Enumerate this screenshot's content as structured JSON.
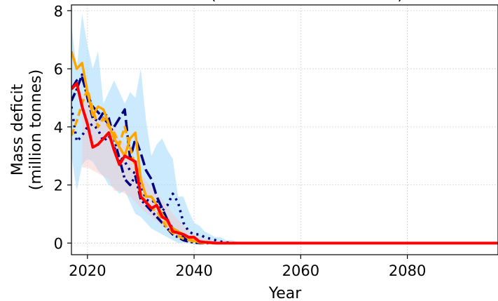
{
  "chart_data": {
    "type": "line",
    "title_fragment": "(                                     )",
    "xlabel": "Year",
    "ylabel": [
      "Mass deficit",
      "(million tonnes)"
    ],
    "xlim": [
      2017,
      2097
    ],
    "ylim": [
      -0.4,
      8.2
    ],
    "x_ticks": [
      2020,
      2040,
      2060,
      2080
    ],
    "y_ticks": [
      0,
      2,
      4,
      6,
      8
    ],
    "grid": true,
    "legend": "none",
    "bands": [
      {
        "color": "#a9dcfb",
        "opacity": 0.6,
        "x": [
          2017,
          2018,
          2019,
          2020,
          2021,
          2022,
          2023,
          2024,
          2025,
          2026,
          2027,
          2028,
          2029,
          2030,
          2031,
          2032,
          2033,
          2034,
          2035,
          2036,
          2037,
          2038,
          2039,
          2040,
          2041,
          2042,
          2043,
          2044,
          2045,
          2046,
          2047,
          2048,
          2050,
          2060,
          2097
        ],
        "upper": [
          7.5,
          6.0,
          7.9,
          6.8,
          6.0,
          6.6,
          4.8,
          5.2,
          5.6,
          5.2,
          4.8,
          5.2,
          5.0,
          6.0,
          4.2,
          3.0,
          3.4,
          3.6,
          3.2,
          2.9,
          1.6,
          1.6,
          1.1,
          0.7,
          0.6,
          0.4,
          0.3,
          0.2,
          0.2,
          0.1,
          0.1,
          0.05,
          0.02,
          0.02,
          0.02
        ],
        "lower": [
          3.0,
          1.8,
          2.7,
          2.9,
          2.8,
          2.5,
          2.3,
          2.0,
          1.9,
          1.7,
          1.8,
          1.4,
          1.0,
          0.9,
          0.7,
          0.5,
          0.4,
          0.3,
          0.2,
          0.1,
          0.0,
          0.0,
          0.0,
          -0.05,
          -0.05,
          -0.05,
          -0.05,
          -0.05,
          -0.05,
          -0.05,
          -0.05,
          -0.05,
          -0.05,
          -0.05,
          -0.05
        ]
      },
      {
        "color": "#f6c8c8",
        "opacity": 0.45,
        "x": [
          2019,
          2020,
          2022,
          2024,
          2025,
          2026,
          2028,
          2030,
          2032,
          2034,
          2036,
          2038,
          2040,
          2042,
          2044
        ],
        "upper": [
          5.2,
          4.8,
          4.4,
          4.2,
          4.0,
          3.6,
          3.2,
          2.4,
          1.9,
          1.5,
          1.0,
          0.6,
          0.3,
          0.15,
          0.05
        ],
        "lower": [
          2.6,
          2.6,
          2.4,
          2.2,
          1.8,
          1.8,
          1.6,
          1.2,
          0.9,
          0.6,
          0.4,
          0.2,
          0.05,
          0.0,
          0.0
        ]
      }
    ],
    "series": [
      {
        "color": "#000080",
        "dash": "3,6",
        "width": 3.5,
        "x": [
          2017,
          2018,
          2019,
          2020,
          2021,
          2022,
          2023,
          2024,
          2025,
          2026,
          2027,
          2028,
          2029,
          2030,
          2031,
          2032,
          2033,
          2034,
          2035,
          2036,
          2037,
          2038,
          2039,
          2040,
          2041,
          2042,
          2043,
          2044,
          2045,
          2046,
          2047,
          2048,
          2050,
          2060,
          2097
        ],
        "y": [
          4.7,
          3.5,
          3.7,
          4.0,
          4.1,
          3.9,
          3.5,
          3.7,
          3.3,
          3.0,
          2.8,
          2.5,
          2.4,
          2.0,
          1.5,
          1.4,
          1.5,
          1.1,
          1.3,
          1.7,
          1.4,
          0.7,
          0.4,
          0.3,
          0.3,
          0.2,
          0.15,
          0.1,
          0.05,
          0.02,
          0.01,
          0.0,
          0.0,
          0.0,
          0.0
        ]
      },
      {
        "color": "#000080",
        "dash": "16,6",
        "width": 3.5,
        "x": [
          2017,
          2018,
          2019,
          2020,
          2021,
          2022,
          2023,
          2024,
          2025,
          2026,
          2027,
          2028,
          2029,
          2030,
          2031,
          2032,
          2033,
          2034,
          2035,
          2036,
          2037,
          2038,
          2039,
          2040,
          2041,
          2042,
          2043,
          2044,
          2045,
          2046,
          2047,
          2048,
          2050,
          2060,
          2097
        ],
        "y": [
          5.3,
          5.6,
          5.7,
          5.1,
          4.7,
          4.5,
          4.3,
          4.1,
          4.0,
          4.3,
          4.6,
          2.9,
          3.6,
          3.1,
          2.5,
          2.2,
          1.6,
          1.2,
          0.8,
          0.5,
          0.4,
          0.2,
          0.1,
          0.1,
          0.06,
          0.03,
          0.01,
          0.0,
          0.0,
          0.0,
          0.0,
          0.0,
          0.0,
          0.0,
          0.0
        ]
      },
      {
        "color": "#000080",
        "dash": "12,4,3,4",
        "width": 3.5,
        "x": [
          2017,
          2018,
          2019,
          2020,
          2021,
          2022,
          2023,
          2024,
          2025,
          2026,
          2027,
          2028,
          2029,
          2030,
          2031,
          2032,
          2033,
          2034,
          2035,
          2036,
          2037,
          2038,
          2039,
          2040,
          2041,
          2042,
          2043,
          2044,
          2045,
          2046,
          2047,
          2048,
          2050,
          2060,
          2097
        ],
        "y": [
          4.9,
          5.3,
          5.8,
          5.0,
          4.3,
          4.2,
          4.5,
          4.3,
          3.6,
          2.9,
          2.2,
          2.0,
          2.3,
          1.5,
          1.3,
          1.1,
          0.9,
          0.7,
          0.5,
          0.3,
          0.2,
          0.1,
          0.05,
          0.02,
          0.0,
          0.0,
          0.0,
          0.0,
          0.0,
          0.0,
          0.0,
          0.0,
          0.0,
          0.0,
          0.0
        ]
      },
      {
        "color": "#ffa500",
        "dash": "",
        "width": 3.5,
        "x": [
          2017,
          2018,
          2019,
          2020,
          2021,
          2022,
          2023,
          2024,
          2025,
          2026,
          2027,
          2028,
          2029,
          2030,
          2031,
          2032,
          2033,
          2034,
          2035,
          2036,
          2037,
          2038,
          2039,
          2040,
          2041,
          2042,
          2043,
          2044,
          2045,
          2046,
          2047,
          2048,
          2050,
          2060,
          2097
        ],
        "y": [
          6.6,
          6.0,
          6.2,
          5.2,
          4.4,
          4.7,
          4.6,
          4.1,
          3.6,
          3.3,
          3.0,
          3.6,
          3.8,
          2.2,
          1.6,
          1.6,
          1.3,
          1.0,
          0.7,
          0.5,
          0.4,
          0.3,
          0.15,
          0.08,
          0.04,
          0.02,
          0.01,
          0.0,
          0.0,
          0.0,
          0.0,
          0.0,
          0.0,
          0.0,
          0.0
        ]
      },
      {
        "color": "#ffa500",
        "dash": "10,5",
        "width": 3.5,
        "x": [
          2017,
          2018,
          2019,
          2020,
          2021,
          2022,
          2023,
          2024,
          2025,
          2026,
          2027,
          2028,
          2029,
          2030,
          2031,
          2032,
          2033,
          2034,
          2035,
          2036,
          2037,
          2038,
          2039,
          2040,
          2041,
          2042,
          2043,
          2044,
          2045,
          2046,
          2047,
          2048,
          2050,
          2060,
          2097
        ],
        "y": [
          3.7,
          4.2,
          4.8,
          5.3,
          4.6,
          4.0,
          4.3,
          4.0,
          3.8,
          3.4,
          4.0,
          3.3,
          2.6,
          1.7,
          1.4,
          1.2,
          1.1,
          0.8,
          0.5,
          0.35,
          0.25,
          0.15,
          0.1,
          0.05,
          0.02,
          0.0,
          0.0,
          0.0,
          0.0,
          0.0,
          0.0,
          0.0,
          0.0,
          0.0,
          0.0
        ]
      },
      {
        "color": "#ff0000",
        "dash": "",
        "width": 4,
        "x": [
          2017,
          2018,
          2019,
          2020,
          2021,
          2022,
          2023,
          2024,
          2025,
          2026,
          2027,
          2028,
          2029,
          2030,
          2031,
          2032,
          2033,
          2034,
          2035,
          2036,
          2037,
          2038,
          2039,
          2040,
          2041,
          2042,
          2043,
          2044,
          2045,
          2046,
          2047,
          2048,
          2050,
          2060,
          2097
        ],
        "y": [
          5.3,
          5.5,
          4.7,
          4.1,
          3.3,
          3.4,
          3.6,
          3.8,
          3.2,
          2.7,
          3.0,
          2.9,
          2.8,
          1.6,
          1.4,
          1.2,
          1.3,
          0.9,
          0.8,
          0.4,
          0.35,
          0.3,
          0.2,
          0.2,
          0.05,
          0.03,
          0.02,
          0.0,
          0.0,
          0.0,
          0.0,
          0.0,
          0.0,
          0.0,
          0.0
        ]
      }
    ]
  }
}
